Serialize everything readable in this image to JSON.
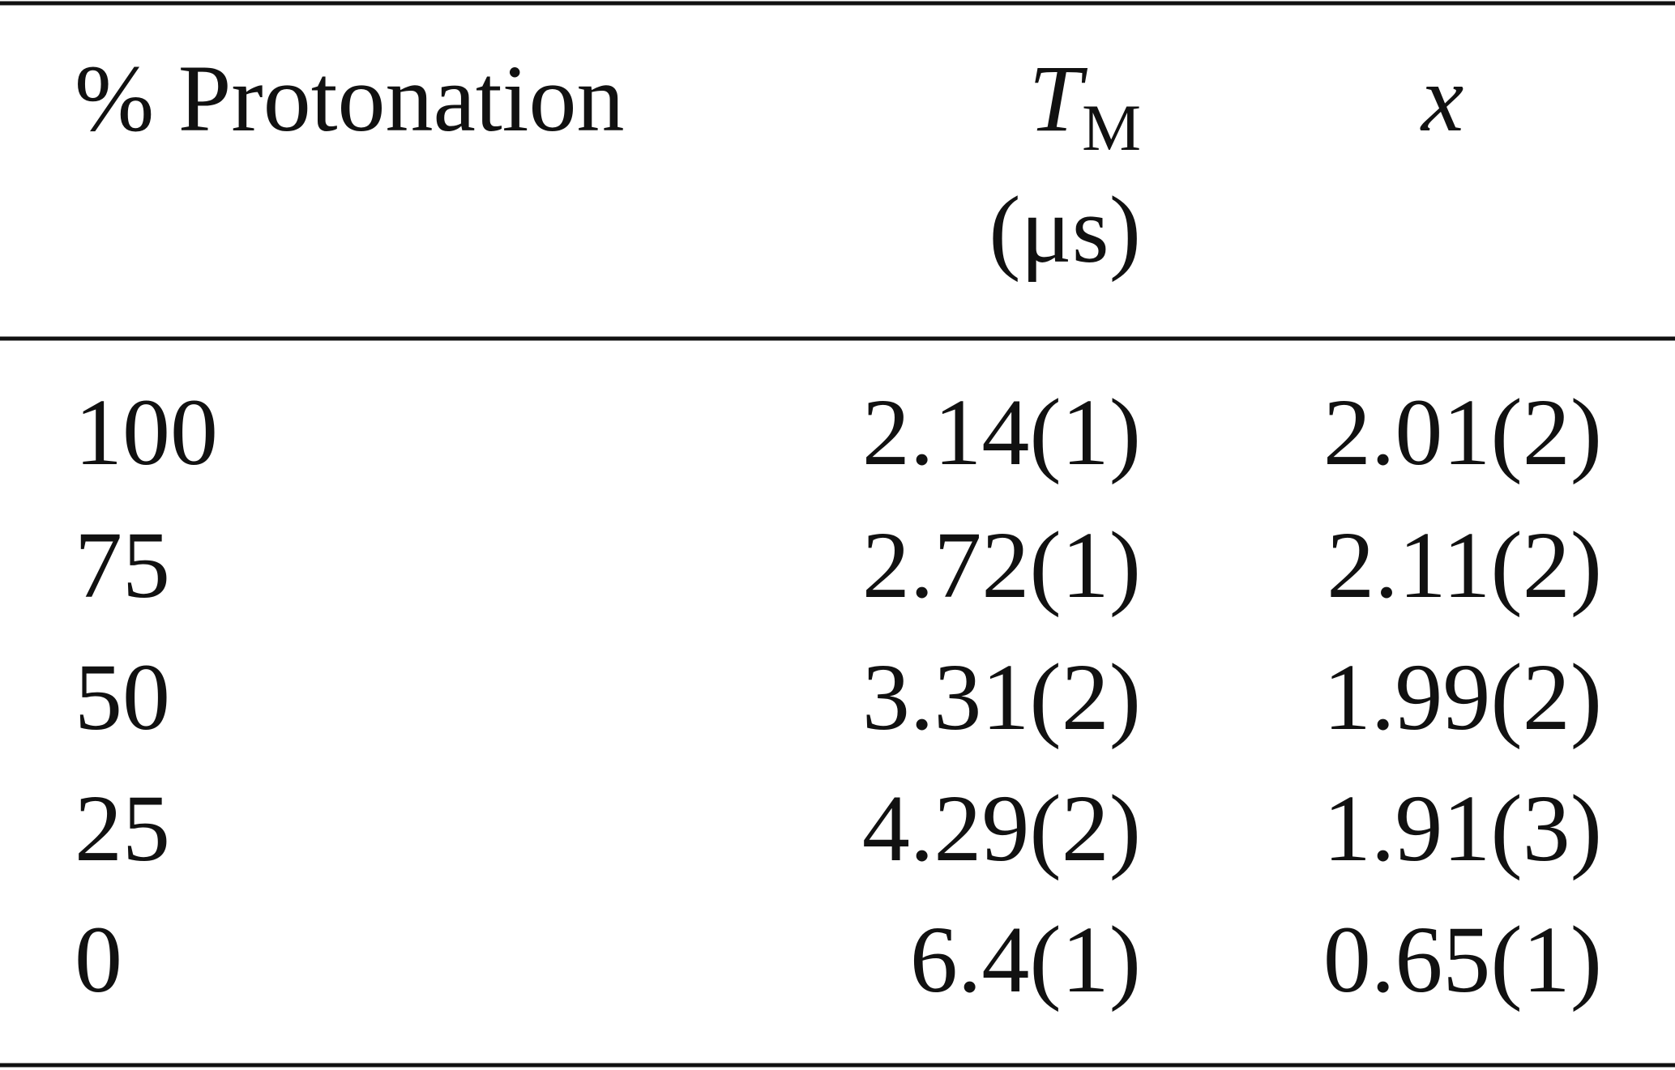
{
  "table": {
    "header": {
      "protonation": "% Protonation",
      "tm": {
        "symbol": "T",
        "subscript": "M",
        "unit": "(μs)"
      },
      "x": "x"
    },
    "rows": [
      [
        "100",
        "2.14(1)",
        "2.01(2)"
      ],
      [
        "75",
        "2.72(1)",
        "2.11(2)"
      ],
      [
        "50",
        "3.31(2)",
        "1.99(2)"
      ],
      [
        "25",
        "4.29(2)",
        "1.91(3)"
      ],
      [
        "0",
        "6.4(1)",
        "0.65(1)"
      ]
    ]
  }
}
